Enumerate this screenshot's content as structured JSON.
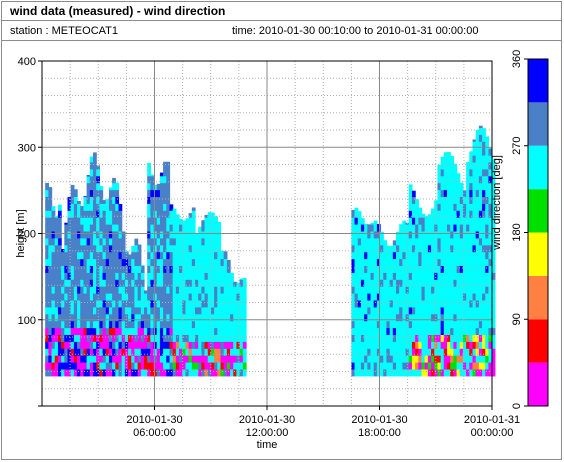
{
  "header": {
    "title": "wind data (measured) - wind direction",
    "station": "station : METEOCAT1",
    "time_range": "time: 2010-01-30 00:10:00 to 2010-01-31 00:00:00"
  },
  "chart_data": {
    "type": "heatmap",
    "title": "wind data (measured) - wind direction",
    "xlabel": "time",
    "ylabel": "height [m]",
    "colorbar_label": "wind direction [deg]",
    "x_range_hours": [
      0,
      24
    ],
    "y_range": [
      0,
      400
    ],
    "grid": true,
    "x_ticks": [
      {
        "hour": 6,
        "line1": "2010-01-30",
        "line2": "06:00:00"
      },
      {
        "hour": 12,
        "line1": "2010-01-30",
        "line2": "12:00:00"
      },
      {
        "hour": 18,
        "line1": "2010-01-30",
        "line2": "18:00:00"
      },
      {
        "hour": 24,
        "line1": "2010-01-31",
        "line2": "00:00:00"
      }
    ],
    "y_ticks": [
      100,
      200,
      300,
      400
    ],
    "colorbar": {
      "range": [
        0,
        360
      ],
      "ticks": [
        0,
        90,
        180,
        270,
        360
      ],
      "bins": [
        {
          "from": 0,
          "to": 45,
          "color": "#ff00ff"
        },
        {
          "from": 45,
          "to": 90,
          "color": "#ff0000"
        },
        {
          "from": 90,
          "to": 135,
          "color": "#ff8040"
        },
        {
          "from": 135,
          "to": 180,
          "color": "#ffff00"
        },
        {
          "from": 180,
          "to": 225,
          "color": "#00e000"
        },
        {
          "from": 225,
          "to": 270,
          "color": "#00ffff"
        },
        {
          "from": 270,
          "to": 315,
          "color": "#4a80c8"
        },
        {
          "from": 315,
          "to": 360,
          "color": "#0000ff"
        }
      ]
    },
    "data_regions": [
      {
        "start_hour": 0.17,
        "end_hour": 10.8,
        "bottom_m": 35
      },
      {
        "start_hour": 16.5,
        "end_hour": 24.0,
        "bottom_m": 35
      }
    ]
  }
}
